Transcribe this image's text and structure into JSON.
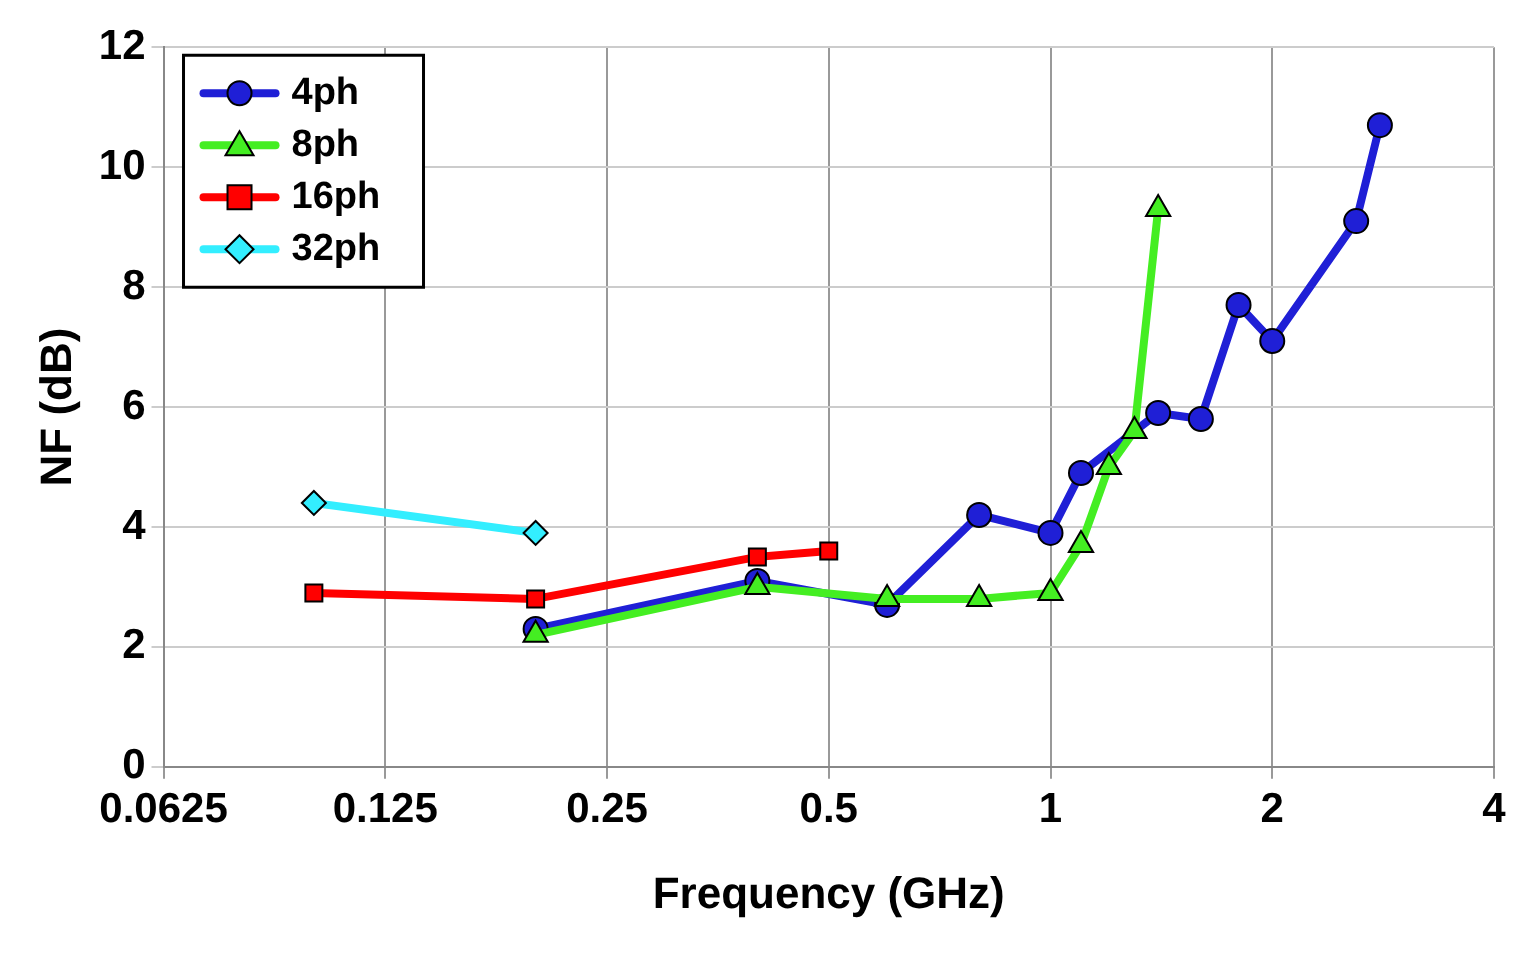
{
  "chart_data": {
    "type": "line",
    "xlabel": "Frequency (GHz)",
    "ylabel": "NF (dB)",
    "log": "x",
    "xlim": [
      0.0625,
      4
    ],
    "xticks": [
      0.0625,
      0.125,
      0.25,
      0.5,
      1,
      2,
      4
    ],
    "ylim": [
      0,
      12
    ],
    "yticks": [
      0,
      2,
      4,
      6,
      8,
      10,
      12
    ],
    "grid": true,
    "legend": "top left",
    "series": [
      {
        "name": "4ph",
        "color": "#1f1fd6",
        "marker": "circle",
        "x": [
          0.2,
          0.4,
          0.6,
          0.8,
          1,
          1.1,
          1.4,
          1.6,
          1.8,
          2,
          2.6,
          2.8
        ],
        "values": [
          2.3,
          3.1,
          2.7,
          4.2,
          3.9,
          4.9,
          5.9,
          5.8,
          7.7,
          7.1,
          9.1,
          10.7
        ]
      },
      {
        "name": "8ph",
        "color": "#44ee22",
        "marker": "triangle",
        "x": [
          0.2,
          0.4,
          0.6,
          0.8,
          1,
          1.1,
          1.2,
          1.3,
          1.4
        ],
        "values": [
          2.2,
          3.0,
          2.8,
          2.8,
          2.9,
          3.7,
          5.0,
          5.6,
          9.3
        ]
      },
      {
        "name": "16ph",
        "color": "#ff0000",
        "marker": "square",
        "x": [
          0.1,
          0.2,
          0.4,
          0.5
        ],
        "values": [
          2.9,
          2.8,
          3.5,
          3.6
        ]
      },
      {
        "name": "32ph",
        "color": "#33eeff",
        "marker": "diamond",
        "x": [
          0.1,
          0.2
        ],
        "values": [
          4.4,
          3.9
        ]
      }
    ]
  }
}
